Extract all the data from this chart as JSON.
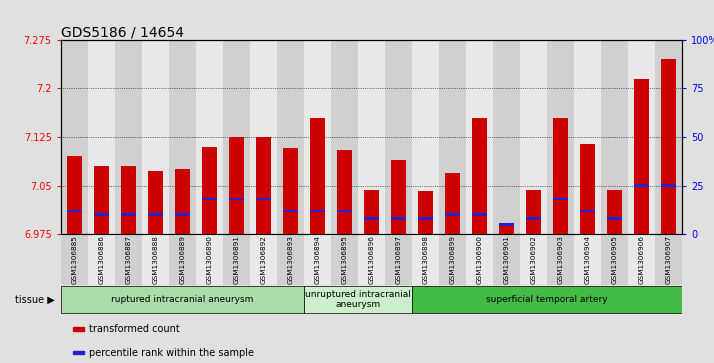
{
  "title": "GDS5186 / 14654",
  "samples": [
    "GSM1306885",
    "GSM1306886",
    "GSM1306887",
    "GSM1306888",
    "GSM1306889",
    "GSM1306890",
    "GSM1306891",
    "GSM1306892",
    "GSM1306893",
    "GSM1306894",
    "GSM1306895",
    "GSM1306896",
    "GSM1306897",
    "GSM1306898",
    "GSM1306899",
    "GSM1306900",
    "GSM1306901",
    "GSM1306902",
    "GSM1306903",
    "GSM1306904",
    "GSM1306905",
    "GSM1306906",
    "GSM1306907"
  ],
  "transformed_count": [
    7.095,
    7.08,
    7.08,
    7.072,
    7.075,
    7.11,
    7.125,
    7.125,
    7.108,
    7.155,
    7.105,
    7.043,
    7.09,
    7.042,
    7.07,
    7.155,
    6.99,
    7.043,
    7.155,
    7.115,
    7.043,
    7.215,
    7.245
  ],
  "percentile_rank": [
    12,
    10,
    10,
    10,
    10,
    18,
    18,
    18,
    12,
    12,
    12,
    8,
    8,
    8,
    10,
    10,
    5,
    8,
    18,
    12,
    8,
    25,
    25
  ],
  "ylim_left": [
    6.975,
    7.275
  ],
  "ylim_right": [
    0,
    100
  ],
  "yticks_left": [
    6.975,
    7.05,
    7.125,
    7.2,
    7.275
  ],
  "yticks_right": [
    0,
    25,
    50,
    75,
    100
  ],
  "bar_color": "#cc0000",
  "percentile_color": "#2222cc",
  "bar_bottom": 6.975,
  "groups": [
    {
      "label": "ruptured intracranial aneurysm",
      "start": 0,
      "end": 9,
      "color": "#aaddaa"
    },
    {
      "label": "unruptured intracranial\naneurysm",
      "start": 9,
      "end": 13,
      "color": "#cceecc"
    },
    {
      "label": "superficial temporal artery",
      "start": 13,
      "end": 23,
      "color": "#44bb44"
    }
  ],
  "legend_items": [
    {
      "label": "transformed count",
      "color": "#cc0000"
    },
    {
      "label": "percentile rank within the sample",
      "color": "#2222cc"
    }
  ],
  "tissue_label": "tissue",
  "background_color": "#e0e0e0",
  "plot_background": "#ffffff",
  "col_bg_even": "#d0d0d0",
  "col_bg_odd": "#e8e8e8",
  "title_fontsize": 10,
  "tick_fontsize": 6,
  "bar_width": 0.55
}
